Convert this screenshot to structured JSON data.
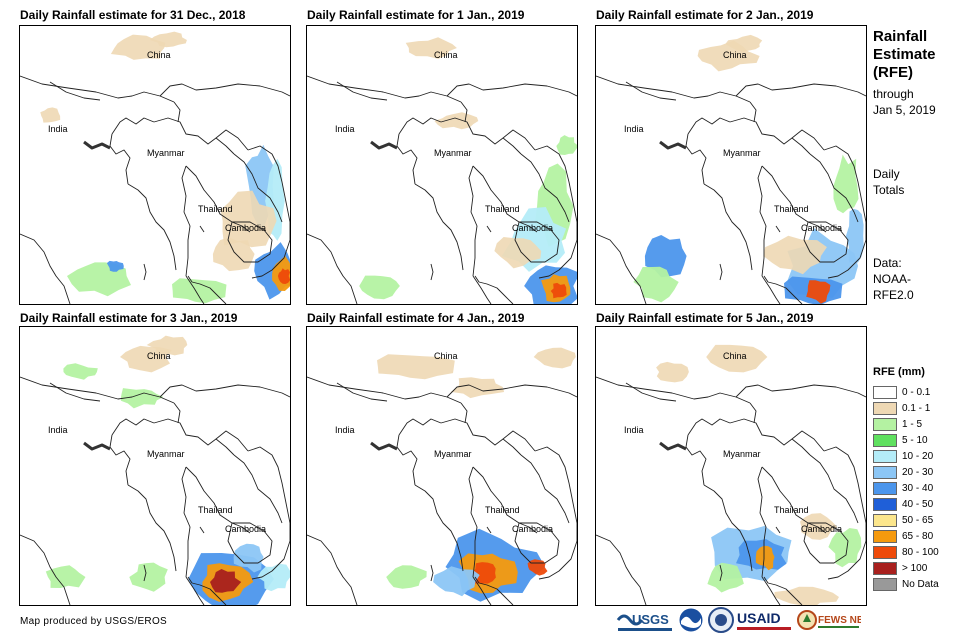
{
  "panels": [
    {
      "title": "Daily Rainfall estimate for 31 Dec., 2018",
      "labels": {
        "china": "China",
        "india": "India",
        "myanmar": "Myanmar",
        "thailand": "Thailand",
        "cambodia": "Cambodia"
      }
    },
    {
      "title": "Daily Rainfall estimate for 1 Jan., 2019",
      "labels": {
        "china": "China",
        "india": "India",
        "myanmar": "Myanmar",
        "thailand": "Thailand",
        "cambodia": "Cambodia"
      }
    },
    {
      "title": "Daily Rainfall estimate for 2 Jan., 2019",
      "labels": {
        "china": "China",
        "india": "India",
        "myanmar": "Myanmar",
        "thailand": "Thailand",
        "cambodia": "Cambodia"
      }
    },
    {
      "title": "Daily Rainfall estimate for 3 Jan., 2019",
      "labels": {
        "china": "China",
        "india": "India",
        "myanmar": "Myanmar",
        "thailand": "Thailand",
        "cambodia": "Cambodia"
      }
    },
    {
      "title": "Daily Rainfall estimate for 4 Jan., 2019",
      "labels": {
        "china": "China",
        "india": "India",
        "myanmar": "Myanmar",
        "thailand": "Thailand",
        "cambodia": "Cambodia"
      }
    },
    {
      "title": "Daily Rainfall estimate for 5 Jan., 2019",
      "labels": {
        "china": "China",
        "india": "India",
        "myanmar": "Myanmar",
        "thailand": "Thailand",
        "cambodia": "Cambodia"
      }
    }
  ],
  "sidebar": {
    "title_line1": "Rainfall",
    "title_line2": "Estimate",
    "title_line3": "(RFE)",
    "through_line1": "through",
    "through_line2": "Jan 5, 2019",
    "totals_line1": "Daily",
    "totals_line2": "Totals",
    "data_line1": "Data:",
    "data_line2": "NOAA-",
    "data_line3": "RFE2.0"
  },
  "legend": {
    "title": "RFE (mm)",
    "items": [
      {
        "label": "0 - 0.1",
        "color": "#ffffff"
      },
      {
        "label": "0.1 - 1",
        "color": "#eed8b4"
      },
      {
        "label": "1 - 5",
        "color": "#b4f2a2"
      },
      {
        "label": "5 - 10",
        "color": "#5fe05f"
      },
      {
        "label": "10 - 20",
        "color": "#b4ecf8"
      },
      {
        "label": "20 - 30",
        "color": "#8cc6f5"
      },
      {
        "label": "30 - 40",
        "color": "#4c96ec"
      },
      {
        "label": "40 - 50",
        "color": "#1f5fd8"
      },
      {
        "label": "50 - 65",
        "color": "#fce68c"
      },
      {
        "label": "65 - 80",
        "color": "#f59a0e"
      },
      {
        "label": "80 - 100",
        "color": "#ee4a0a"
      },
      {
        "label": "> 100",
        "color": "#a8201e"
      },
      {
        "label": "No Data",
        "color": "#999999"
      }
    ]
  },
  "footer": {
    "credit": "Map produced by USGS/EROS",
    "logos": {
      "usgs": "USGS",
      "usaid": "USAID",
      "fewsnet": "FEWS NET"
    }
  }
}
